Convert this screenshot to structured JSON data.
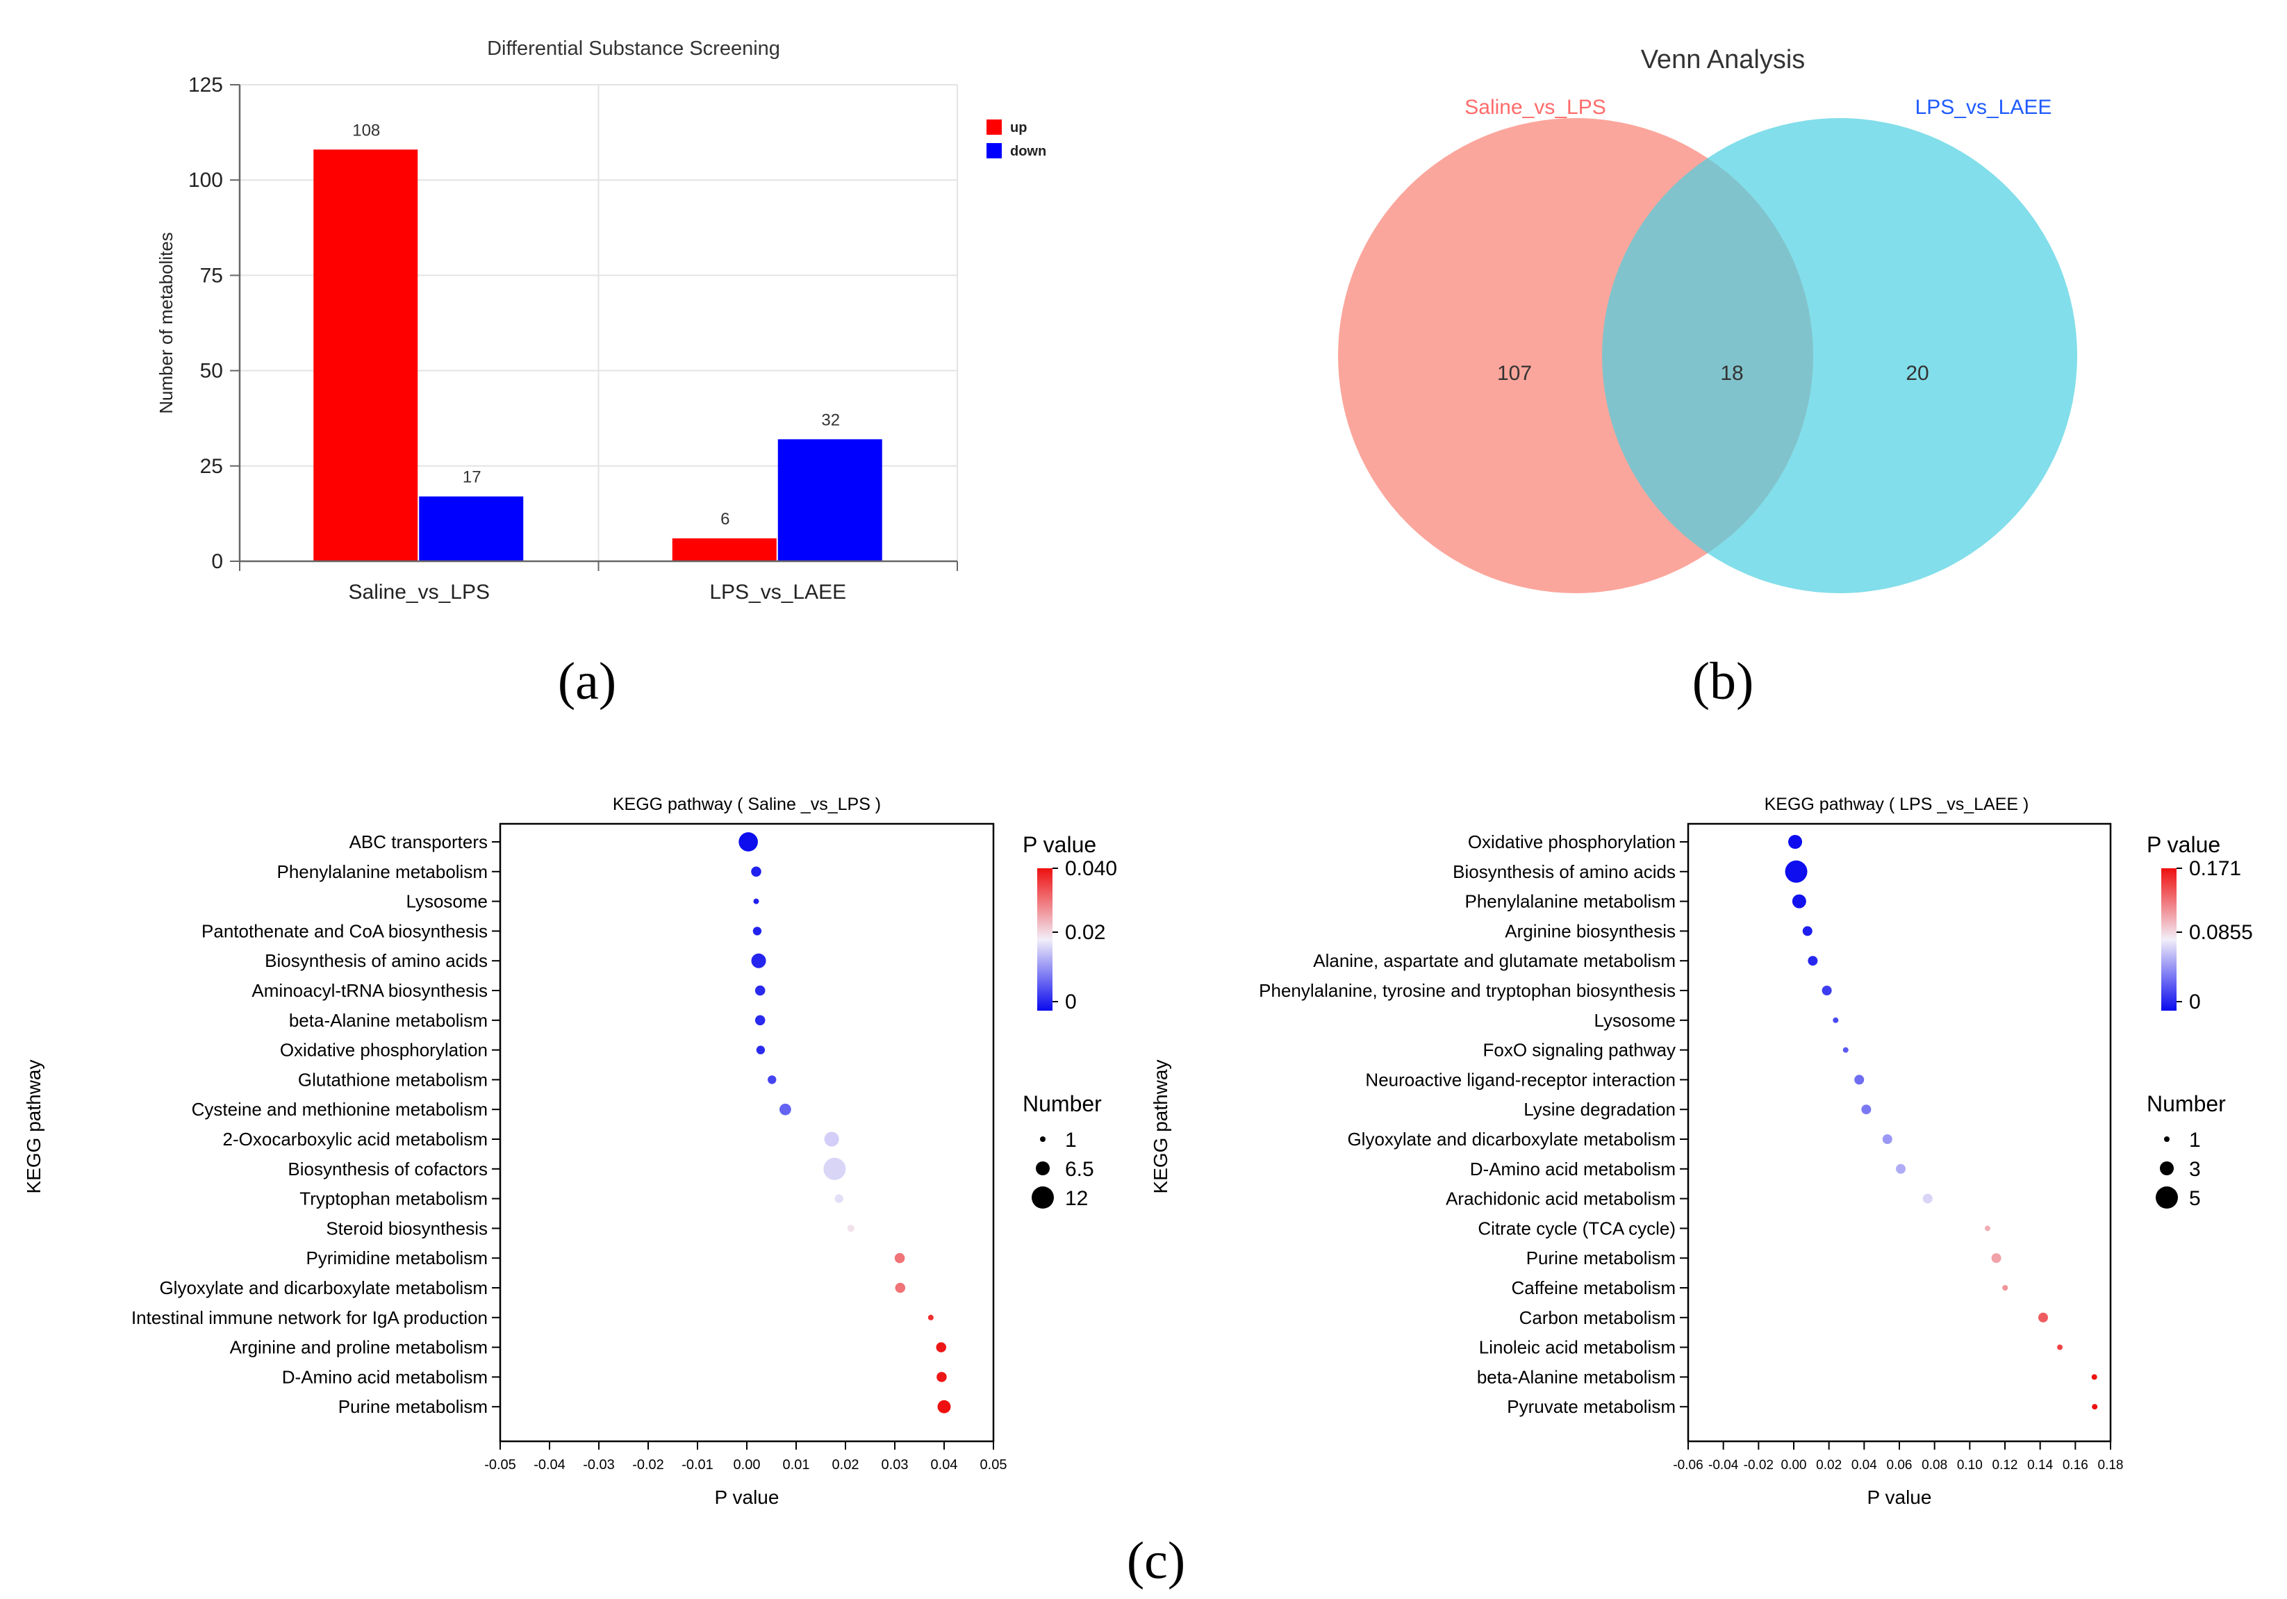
{
  "panel_labels": {
    "a": "(a)",
    "b": "(b)",
    "c": "(c)"
  },
  "colors": {
    "up": "#ff0000",
    "down": "#0000ff",
    "venn_left": "#fa8072",
    "venn_right": "#4dd0e1",
    "venn_left_label": "#ff6b6b",
    "venn_right_label": "#1e5bff",
    "p_high": "#ee1010",
    "p_mid": "#f2eef8",
    "p_low": "#0a0aee"
  },
  "chart_data": [
    {
      "id": "bar",
      "type": "bar",
      "title": "Differential Substance Screening",
      "xlabel": "",
      "ylabel": "Number of metabolites",
      "categories": [
        "Saline_vs_LPS",
        "LPS_vs_LAEE"
      ],
      "series": [
        {
          "name": "up",
          "values": [
            108,
            6
          ]
        },
        {
          "name": "down",
          "values": [
            17,
            32
          ]
        }
      ],
      "ylim": [
        0,
        125
      ],
      "yticks": [
        "0",
        "25",
        "50",
        "75",
        "100",
        "125"
      ],
      "legend": "top-right",
      "grid": true
    },
    {
      "id": "venn",
      "type": "venn",
      "title": "Venn Analysis",
      "sets": [
        "Saline_vs_LPS",
        "LPS_vs_LAEE"
      ],
      "only_left": "107",
      "intersection": "18",
      "only_right": "20"
    },
    {
      "id": "kegg1",
      "type": "scatter",
      "title": "KEGG pathway ( Saline _vs_LPS )",
      "xlabel": "P value",
      "ylabel": "KEGG pathway",
      "xlim": [
        -0.05,
        0.05
      ],
      "xticks": [
        "-0.05",
        "-0.04",
        "-0.03",
        "-0.02",
        "-0.01",
        "0.00",
        "0.01",
        "0.02",
        "0.03",
        "0.04",
        "0.05"
      ],
      "color_legend": {
        "title": "P value",
        "max": 0.04,
        "labels": [
          "0.040",
          "0.02",
          "0"
        ]
      },
      "size_legend": {
        "title": "Number",
        "values": [
          1,
          6.5,
          12
        ],
        "labels": [
          "1",
          "6.5",
          "12"
        ]
      },
      "points": [
        {
          "pathway": "ABC transporters",
          "p": 0.0003,
          "n": 10
        },
        {
          "pathway": "Phenylalanine metabolism",
          "p": 0.0019,
          "n": 4
        },
        {
          "pathway": "Lysosome",
          "p": 0.0019,
          "n": 1
        },
        {
          "pathway": "Pantothenate and CoA biosynthesis",
          "p": 0.0021,
          "n": 3
        },
        {
          "pathway": "Biosynthesis of amino acids",
          "p": 0.0024,
          "n": 7
        },
        {
          "pathway": "Aminoacyl-tRNA biosynthesis",
          "p": 0.0027,
          "n": 4
        },
        {
          "pathway": "beta-Alanine metabolism",
          "p": 0.0027,
          "n": 4
        },
        {
          "pathway": "Oxidative phosphorylation",
          "p": 0.0028,
          "n": 3
        },
        {
          "pathway": "Glutathione metabolism",
          "p": 0.0051,
          "n": 3
        },
        {
          "pathway": "Cysteine and methionine metabolism",
          "p": 0.0078,
          "n": 5
        },
        {
          "pathway": "2-Oxocarboxylic acid metabolism",
          "p": 0.0172,
          "n": 7
        },
        {
          "pathway": "Biosynthesis of cofactors",
          "p": 0.0178,
          "n": 12
        },
        {
          "pathway": "Tryptophan metabolism",
          "p": 0.0187,
          "n": 3
        },
        {
          "pathway": "Steroid biosynthesis",
          "p": 0.0211,
          "n": 2
        },
        {
          "pathway": "Pyrimidine metabolism",
          "p": 0.031,
          "n": 4
        },
        {
          "pathway": "Glyoxylate and dicarboxylate metabolism",
          "p": 0.0311,
          "n": 4
        },
        {
          "pathway": "Intestinal immune network for IgA production",
          "p": 0.0373,
          "n": 1
        },
        {
          "pathway": "Arginine and proline metabolism",
          "p": 0.0394,
          "n": 4
        },
        {
          "pathway": "D-Amino acid metabolism",
          "p": 0.0395,
          "n": 4
        },
        {
          "pathway": "Purine metabolism",
          "p": 0.04,
          "n": 6
        }
      ]
    },
    {
      "id": "kegg2",
      "type": "scatter",
      "title": "KEGG pathway ( LPS _vs_LAEE )",
      "xlabel": "P value",
      "ylabel": "KEGG pathway",
      "xlim": [
        -0.06,
        0.18
      ],
      "xticks": [
        "-0.06",
        "-0.04",
        "-0.02",
        "0.00",
        "0.02",
        "0.04",
        "0.06",
        "0.08",
        "0.10",
        "0.12",
        "0.14",
        "0.16",
        "0.18"
      ],
      "color_legend": {
        "title": "P value",
        "max": 0.171,
        "labels": [
          "0.171",
          "0.0855",
          "0"
        ]
      },
      "size_legend": {
        "title": "Number",
        "values": [
          1,
          3,
          5
        ],
        "labels": [
          "1",
          "3",
          "5"
        ]
      },
      "points": [
        {
          "pathway": "Oxidative phosphorylation",
          "p": 0.0008,
          "n": 3
        },
        {
          "pathway": "Biosynthesis of amino acids",
          "p": 0.0014,
          "n": 5
        },
        {
          "pathway": "Phenylalanine metabolism",
          "p": 0.0031,
          "n": 3
        },
        {
          "pathway": "Arginine biosynthesis",
          "p": 0.0078,
          "n": 2
        },
        {
          "pathway": "Alanine, aspartate and glutamate metabolism",
          "p": 0.0108,
          "n": 2
        },
        {
          "pathway": "Phenylalanine, tyrosine and tryptophan biosynthesis",
          "p": 0.0188,
          "n": 2
        },
        {
          "pathway": "Lysosome",
          "p": 0.0238,
          "n": 1
        },
        {
          "pathway": "FoxO signaling pathway",
          "p": 0.0295,
          "n": 1
        },
        {
          "pathway": "Neuroactive ligand-receptor interaction",
          "p": 0.0372,
          "n": 2
        },
        {
          "pathway": "Lysine degradation",
          "p": 0.0412,
          "n": 2
        },
        {
          "pathway": "Glyoxylate and dicarboxylate metabolism",
          "p": 0.0532,
          "n": 2
        },
        {
          "pathway": "D-Amino acid metabolism",
          "p": 0.0608,
          "n": 2
        },
        {
          "pathway": "Arachidonic acid metabolism",
          "p": 0.0761,
          "n": 2
        },
        {
          "pathway": "Citrate cycle (TCA cycle)",
          "p": 0.1101,
          "n": 1
        },
        {
          "pathway": "Purine metabolism",
          "p": 0.1151,
          "n": 2
        },
        {
          "pathway": "Caffeine metabolism",
          "p": 0.1201,
          "n": 1
        },
        {
          "pathway": "Carbon metabolism",
          "p": 0.1417,
          "n": 2
        },
        {
          "pathway": "Linoleic acid metabolism",
          "p": 0.1512,
          "n": 1
        },
        {
          "pathway": "beta-Alanine metabolism",
          "p": 0.1708,
          "n": 1
        },
        {
          "pathway": "Pyruvate metabolism",
          "p": 0.171,
          "n": 1
        }
      ]
    }
  ]
}
